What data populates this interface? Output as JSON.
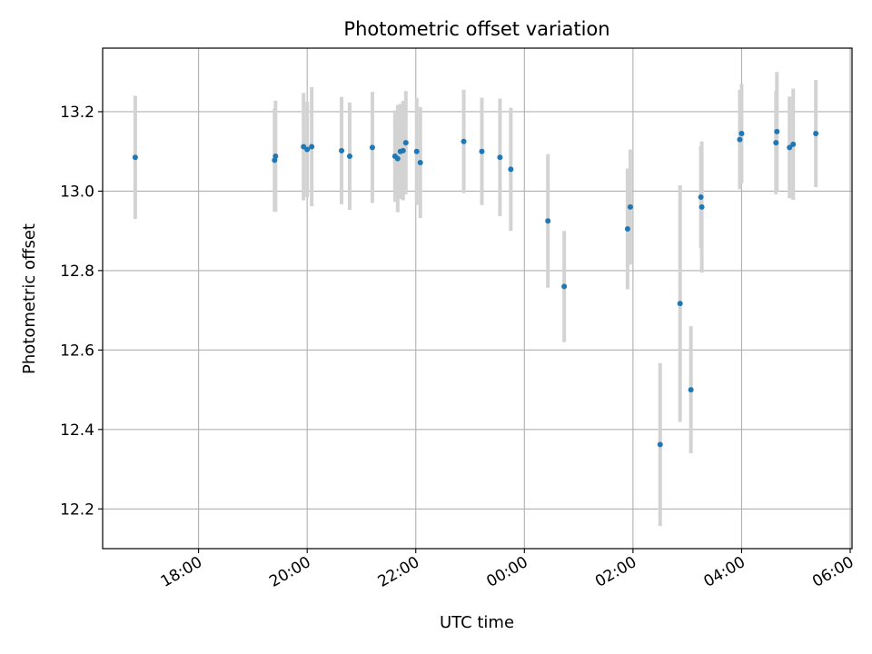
{
  "chart_data": {
    "type": "scatter",
    "title": "Photometric offset variation",
    "xlabel": "UTC time",
    "ylabel": "Photometric offset",
    "grid": true,
    "x_axis": {
      "kind": "time",
      "range": [
        "16:14",
        "06:02"
      ],
      "ticks": [
        "18:00",
        "20:00",
        "22:00",
        "00:00",
        "02:00",
        "04:00",
        "06:00"
      ]
    },
    "y_axis": {
      "range": [
        12.1,
        13.36
      ],
      "ticks": [
        12.2,
        12.4,
        12.6,
        12.8,
        13.0,
        13.2
      ],
      "tick_labels": [
        "12.2",
        "12.4",
        "12.6",
        "12.8",
        "13.0",
        "13.2"
      ]
    },
    "marker_color": "#1f77b4",
    "errorbar_color": "#d3d3d3",
    "points": [
      {
        "t": "16:50",
        "y": 13.085,
        "err": 0.155
      },
      {
        "t": "19:24",
        "y": 13.078,
        "err": 0.13
      },
      {
        "t": "19:25",
        "y": 13.088,
        "err": 0.14
      },
      {
        "t": "19:56",
        "y": 13.112,
        "err": 0.135
      },
      {
        "t": "20:00",
        "y": 13.105,
        "err": 0.12
      },
      {
        "t": "20:05",
        "y": 13.112,
        "err": 0.15
      },
      {
        "t": "20:38",
        "y": 13.102,
        "err": 0.135
      },
      {
        "t": "20:47",
        "y": 13.088,
        "err": 0.135
      },
      {
        "t": "21:12",
        "y": 13.11,
        "err": 0.14
      },
      {
        "t": "21:37",
        "y": 13.088,
        "err": 0.115
      },
      {
        "t": "21:40",
        "y": 13.082,
        "err": 0.135
      },
      {
        "t": "21:43",
        "y": 13.1,
        "err": 0.12
      },
      {
        "t": "21:46",
        "y": 13.102,
        "err": 0.125
      },
      {
        "t": "21:49",
        "y": 13.122,
        "err": 0.13
      },
      {
        "t": "22:01",
        "y": 13.1,
        "err": 0.135
      },
      {
        "t": "22:05",
        "y": 13.072,
        "err": 0.14
      },
      {
        "t": "22:53",
        "y": 13.125,
        "err": 0.13
      },
      {
        "t": "23:13",
        "y": 13.1,
        "err": 0.135
      },
      {
        "t": "23:33",
        "y": 13.085,
        "err": 0.148
      },
      {
        "t": "23:45",
        "y": 13.055,
        "err": 0.155
      },
      {
        "t": "00:26",
        "y": 12.925,
        "err": 0.168
      },
      {
        "t": "00:44",
        "y": 12.76,
        "err": 0.14
      },
      {
        "t": "01:54",
        "y": 12.905,
        "err": 0.152
      },
      {
        "t": "01:57",
        "y": 12.96,
        "err": 0.145
      },
      {
        "t": "02:30",
        "y": 12.362,
        "err": 0.205
      },
      {
        "t": "02:52",
        "y": 12.717,
        "err": 0.298
      },
      {
        "t": "03:04",
        "y": 12.5,
        "err": 0.16
      },
      {
        "t": "03:15",
        "y": 12.985,
        "err": 0.128
      },
      {
        "t": "03:16",
        "y": 12.96,
        "err": 0.165
      },
      {
        "t": "03:58",
        "y": 13.13,
        "err": 0.125
      },
      {
        "t": "04:00",
        "y": 13.145,
        "err": 0.125
      },
      {
        "t": "04:38",
        "y": 13.122,
        "err": 0.13
      },
      {
        "t": "04:39",
        "y": 13.15,
        "err": 0.15
      },
      {
        "t": "04:53",
        "y": 13.11,
        "err": 0.128
      },
      {
        "t": "04:57",
        "y": 13.118,
        "err": 0.14
      },
      {
        "t": "05:22",
        "y": 13.145,
        "err": 0.135
      }
    ]
  }
}
